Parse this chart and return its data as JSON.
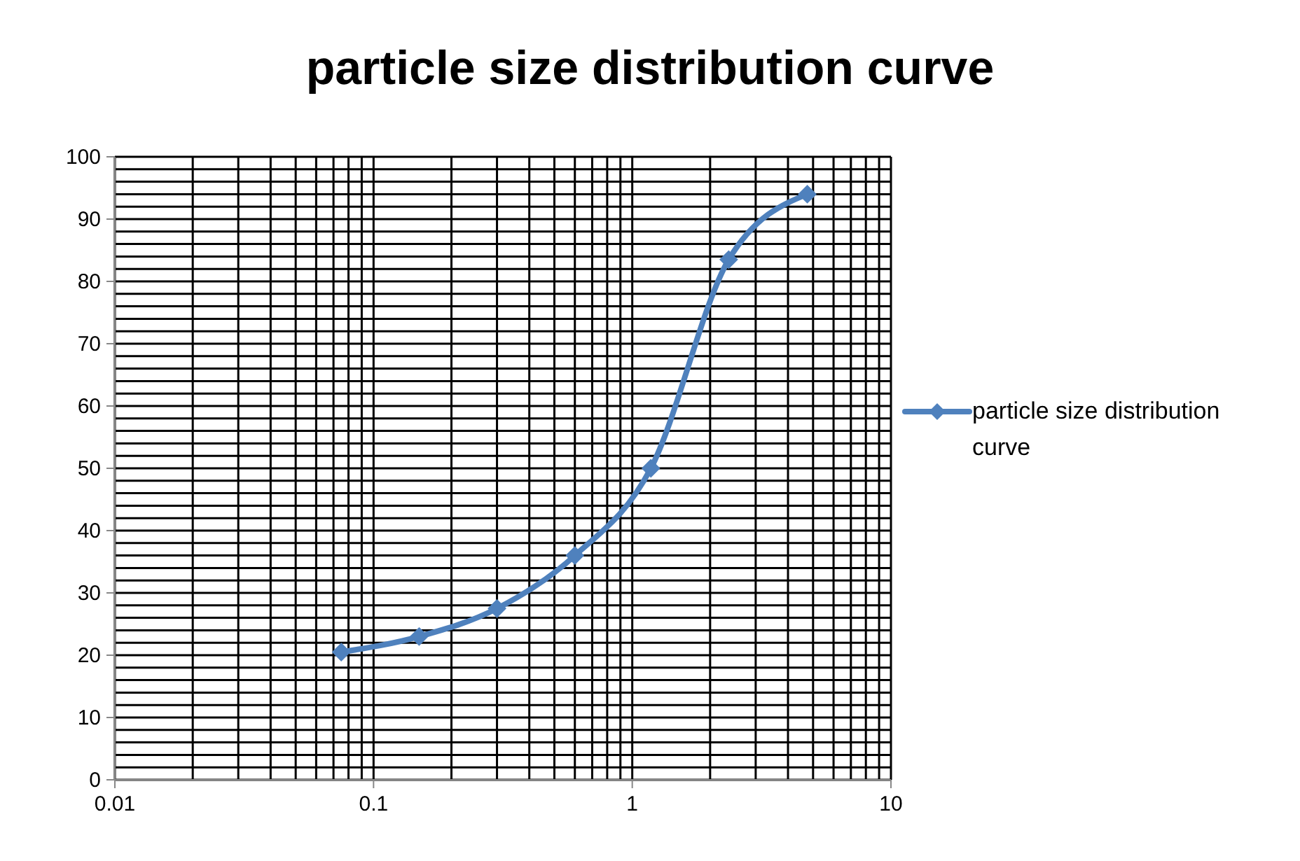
{
  "chart_data": {
    "type": "line",
    "title": "particle size distribution curve",
    "x": [
      0.075,
      0.15,
      0.3,
      0.6,
      1.18,
      2.36,
      4.75
    ],
    "series": [
      {
        "name": "particle size distribution curve",
        "color": "#4f81bd",
        "values": [
          20.5,
          23,
          27.5,
          36,
          50,
          83.5,
          94
        ]
      }
    ],
    "log": "x",
    "xlim": [
      0.01,
      10
    ],
    "xticks": [
      0.01,
      {
        "value": 0.02,
        "label": null
      },
      {
        "value": 0.03,
        "label": null
      },
      {
        "value": 0.04,
        "label": null
      },
      {
        "value": 0.05,
        "label": null
      },
      {
        "value": 0.06,
        "label": null
      },
      {
        "value": 0.07,
        "label": null
      },
      {
        "value": 0.08,
        "label": null
      },
      {
        "value": 0.09,
        "label": null
      },
      0.1,
      {
        "value": 0.2,
        "label": null
      },
      {
        "value": 0.3,
        "label": null
      },
      {
        "value": 0.4,
        "label": null
      },
      {
        "value": 0.5,
        "label": null
      },
      {
        "value": 0.6,
        "label": null
      },
      {
        "value": 0.7,
        "label": null
      },
      {
        "value": 0.8,
        "label": null
      },
      {
        "value": 0.9,
        "label": null
      },
      1,
      {
        "value": 2,
        "label": null
      },
      {
        "value": 3,
        "label": null
      },
      {
        "value": 4,
        "label": null
      },
      {
        "value": 5,
        "label": null
      },
      {
        "value": 6,
        "label": null
      },
      {
        "value": 7,
        "label": null
      },
      {
        "value": 8,
        "label": null
      },
      {
        "value": 9,
        "label": null
      },
      10
    ],
    "ylim": [
      0,
      100
    ],
    "yticks": [
      0,
      {
        "value": 2,
        "label": null
      },
      {
        "value": 4,
        "label": null
      },
      {
        "value": 6,
        "label": null
      },
      {
        "value": 8,
        "label": null
      },
      10,
      {
        "value": 12,
        "label": null
      },
      {
        "value": 14,
        "label": null
      },
      {
        "value": 16,
        "label": null
      },
      {
        "value": 18,
        "label": null
      },
      20,
      {
        "value": 22,
        "label": null
      },
      {
        "value": 24,
        "label": null
      },
      {
        "value": 26,
        "label": null
      },
      {
        "value": 28,
        "label": null
      },
      30,
      {
        "value": 32,
        "label": null
      },
      {
        "value": 34,
        "label": null
      },
      {
        "value": 36,
        "label": null
      },
      {
        "value": 38,
        "label": null
      },
      40,
      {
        "value": 42,
        "label": null
      },
      {
        "value": 44,
        "label": null
      },
      {
        "value": 46,
        "label": null
      },
      {
        "value": 48,
        "label": null
      },
      50,
      {
        "value": 52,
        "label": null
      },
      {
        "value": 54,
        "label": null
      },
      {
        "value": 56,
        "label": null
      },
      {
        "value": 58,
        "label": null
      },
      60,
      {
        "value": 62,
        "label": null
      },
      {
        "value": 64,
        "label": null
      },
      {
        "value": 66,
        "label": null
      },
      {
        "value": 68,
        "label": null
      },
      70,
      {
        "value": 72,
        "label": null
      },
      {
        "value": 74,
        "label": null
      },
      {
        "value": 76,
        "label": null
      },
      {
        "value": 78,
        "label": null
      },
      80,
      {
        "value": 82,
        "label": null
      },
      {
        "value": 84,
        "label": null
      },
      {
        "value": 86,
        "label": null
      },
      {
        "value": 88,
        "label": null
      },
      90,
      {
        "value": 92,
        "label": null
      },
      {
        "value": 94,
        "label": null
      },
      {
        "value": 96,
        "label": null
      },
      {
        "value": 98,
        "label": null
      },
      100
    ],
    "grid": true,
    "legend": "right",
    "marker": "diamond",
    "line_style": "solid"
  }
}
